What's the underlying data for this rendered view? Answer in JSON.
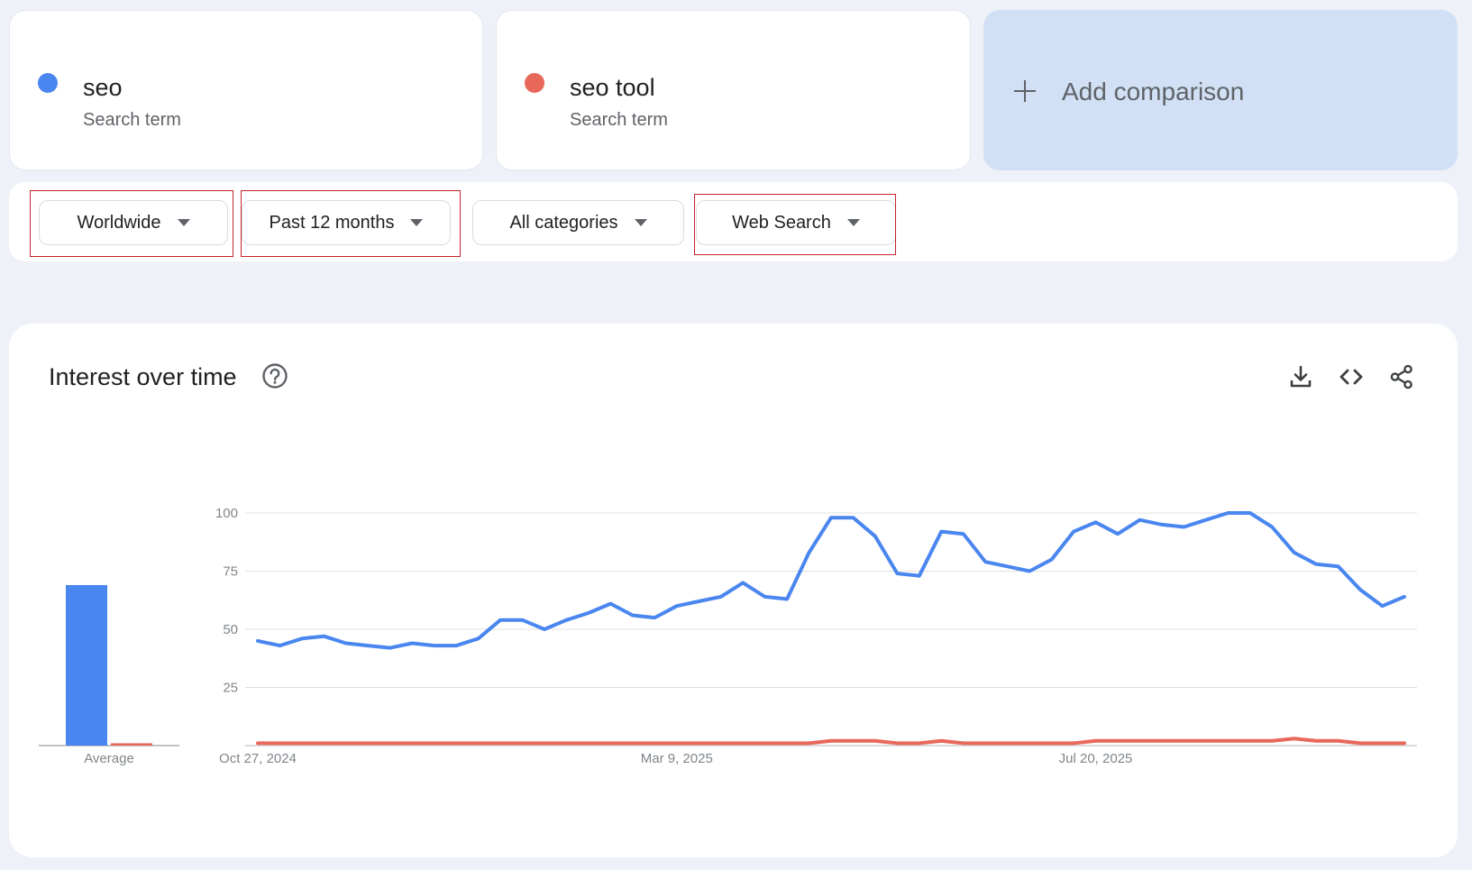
{
  "terms": [
    {
      "name": "seo",
      "subtitle": "Search term",
      "color": "#4a86ef"
    },
    {
      "name": "seo tool",
      "subtitle": "Search term",
      "color": "#e8685c"
    }
  ],
  "add_comparison": {
    "label": "Add comparison"
  },
  "filters": [
    {
      "label": "Worldwide",
      "highlighted": true
    },
    {
      "label": "Past 12 months",
      "highlighted": true
    },
    {
      "label": "All categories",
      "highlighted": false
    },
    {
      "label": "Web Search",
      "highlighted": true
    }
  ],
  "chart_card": {
    "title": "Interest over time",
    "icons": [
      "help-icon",
      "download-icon",
      "embed-code-icon",
      "share-icon"
    ]
  },
  "chart_data": {
    "type": "line",
    "y_ticks": [
      "100",
      "75",
      "50",
      "25"
    ],
    "ylim": [
      0,
      100
    ],
    "x_labels": [
      "Oct 27, 2024",
      "Mar 9, 2025",
      "Jul 20, 2025"
    ],
    "x_label_indices": [
      0,
      19,
      38
    ],
    "grid": true,
    "average_label": "Average",
    "series": [
      {
        "name": "seo",
        "color": "#4a86ef",
        "average": 69,
        "values": [
          45,
          43,
          46,
          47,
          44,
          43,
          42,
          44,
          43,
          43,
          46,
          54,
          54,
          50,
          54,
          57,
          61,
          56,
          55,
          60,
          62,
          64,
          70,
          64,
          63,
          83,
          98,
          98,
          90,
          74,
          73,
          92,
          91,
          79,
          77,
          75,
          80,
          92,
          96,
          91,
          97,
          95,
          94,
          97,
          100,
          100,
          94,
          83,
          78,
          77,
          67,
          60,
          64
        ]
      },
      {
        "name": "seo tool",
        "color": "#e8685c",
        "average": 1,
        "values": [
          1,
          1,
          1,
          1,
          1,
          1,
          1,
          1,
          1,
          1,
          1,
          1,
          1,
          1,
          1,
          1,
          1,
          1,
          1,
          1,
          1,
          1,
          1,
          1,
          1,
          1,
          2,
          2,
          2,
          1,
          1,
          2,
          1,
          1,
          1,
          1,
          1,
          1,
          2,
          2,
          2,
          2,
          2,
          2,
          2,
          2,
          2,
          3,
          2,
          2,
          1,
          1,
          1
        ]
      }
    ]
  }
}
